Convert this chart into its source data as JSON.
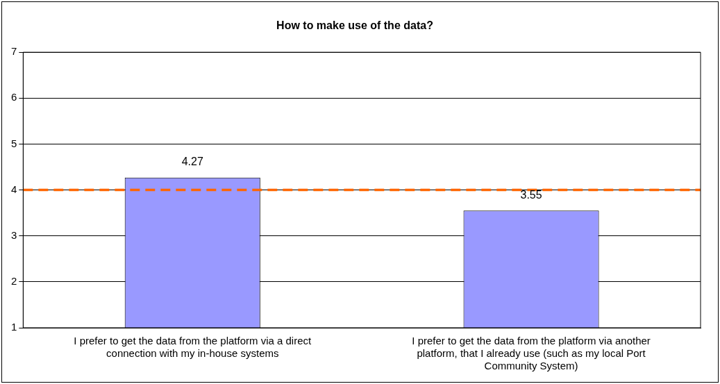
{
  "chart_data": {
    "type": "bar",
    "title": "How to make use of the data?",
    "categories": [
      "I prefer to get the data from the platform via a direct connection with my in-house systems",
      "I prefer to get the data from the platform via another platform, that I already use (such as my local Port Community System)"
    ],
    "values": [
      4.27,
      3.55
    ],
    "color": "#9999ff",
    "ylim": [
      1,
      7
    ],
    "yticks": [
      1,
      2,
      3,
      4,
      5,
      6,
      7
    ],
    "grid": "y",
    "legend": false,
    "data_labels": true,
    "ref_lines": [
      {
        "axis": "y",
        "value": 4,
        "color": "#ff6600",
        "line_style": "dashed"
      }
    ]
  }
}
